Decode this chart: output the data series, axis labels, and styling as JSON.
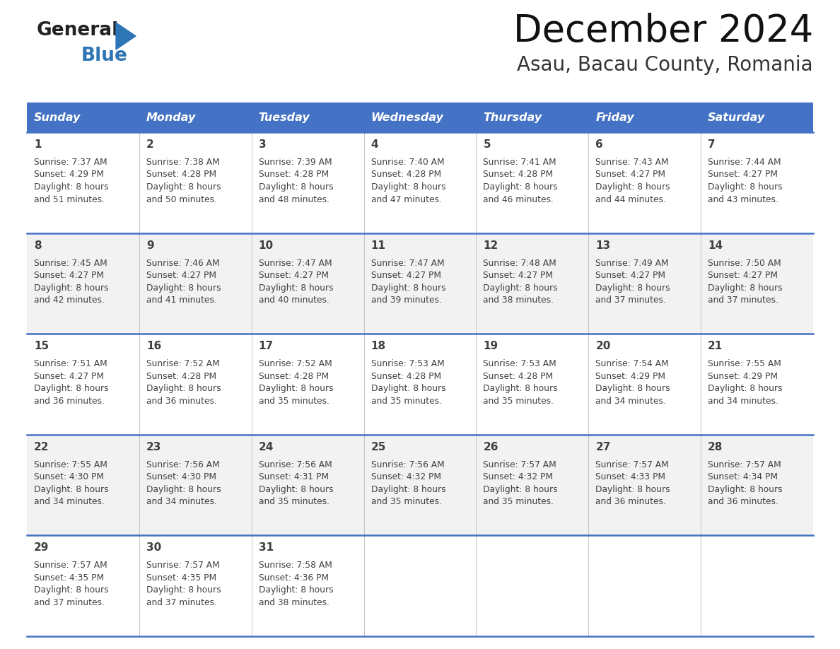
{
  "title": "December 2024",
  "subtitle": "Asau, Bacau County, Romania",
  "header_bg_color": "#4472C4",
  "header_text_color": "#FFFFFF",
  "day_names": [
    "Sunday",
    "Monday",
    "Tuesday",
    "Wednesday",
    "Thursday",
    "Friday",
    "Saturday"
  ],
  "cell_bg_row0": "#FFFFFF",
  "cell_bg_row1": "#F2F2F2",
  "row_line_color": "#4472C4",
  "text_color": "#404040",
  "days": [
    {
      "day": 1,
      "col": 0,
      "row": 0,
      "sunrise": "7:37 AM",
      "sunset": "4:29 PM",
      "daylight": "8 hours and 51 minutes."
    },
    {
      "day": 2,
      "col": 1,
      "row": 0,
      "sunrise": "7:38 AM",
      "sunset": "4:28 PM",
      "daylight": "8 hours and 50 minutes."
    },
    {
      "day": 3,
      "col": 2,
      "row": 0,
      "sunrise": "7:39 AM",
      "sunset": "4:28 PM",
      "daylight": "8 hours and 48 minutes."
    },
    {
      "day": 4,
      "col": 3,
      "row": 0,
      "sunrise": "7:40 AM",
      "sunset": "4:28 PM",
      "daylight": "8 hours and 47 minutes."
    },
    {
      "day": 5,
      "col": 4,
      "row": 0,
      "sunrise": "7:41 AM",
      "sunset": "4:28 PM",
      "daylight": "8 hours and 46 minutes."
    },
    {
      "day": 6,
      "col": 5,
      "row": 0,
      "sunrise": "7:43 AM",
      "sunset": "4:27 PM",
      "daylight": "8 hours and 44 minutes."
    },
    {
      "day": 7,
      "col": 6,
      "row": 0,
      "sunrise": "7:44 AM",
      "sunset": "4:27 PM",
      "daylight": "8 hours and 43 minutes."
    },
    {
      "day": 8,
      "col": 0,
      "row": 1,
      "sunrise": "7:45 AM",
      "sunset": "4:27 PM",
      "daylight": "8 hours and 42 minutes."
    },
    {
      "day": 9,
      "col": 1,
      "row": 1,
      "sunrise": "7:46 AM",
      "sunset": "4:27 PM",
      "daylight": "8 hours and 41 minutes."
    },
    {
      "day": 10,
      "col": 2,
      "row": 1,
      "sunrise": "7:47 AM",
      "sunset": "4:27 PM",
      "daylight": "8 hours and 40 minutes."
    },
    {
      "day": 11,
      "col": 3,
      "row": 1,
      "sunrise": "7:47 AM",
      "sunset": "4:27 PM",
      "daylight": "8 hours and 39 minutes."
    },
    {
      "day": 12,
      "col": 4,
      "row": 1,
      "sunrise": "7:48 AM",
      "sunset": "4:27 PM",
      "daylight": "8 hours and 38 minutes."
    },
    {
      "day": 13,
      "col": 5,
      "row": 1,
      "sunrise": "7:49 AM",
      "sunset": "4:27 PM",
      "daylight": "8 hours and 37 minutes."
    },
    {
      "day": 14,
      "col": 6,
      "row": 1,
      "sunrise": "7:50 AM",
      "sunset": "4:27 PM",
      "daylight": "8 hours and 37 minutes."
    },
    {
      "day": 15,
      "col": 0,
      "row": 2,
      "sunrise": "7:51 AM",
      "sunset": "4:27 PM",
      "daylight": "8 hours and 36 minutes."
    },
    {
      "day": 16,
      "col": 1,
      "row": 2,
      "sunrise": "7:52 AM",
      "sunset": "4:28 PM",
      "daylight": "8 hours and 36 minutes."
    },
    {
      "day": 17,
      "col": 2,
      "row": 2,
      "sunrise": "7:52 AM",
      "sunset": "4:28 PM",
      "daylight": "8 hours and 35 minutes."
    },
    {
      "day": 18,
      "col": 3,
      "row": 2,
      "sunrise": "7:53 AM",
      "sunset": "4:28 PM",
      "daylight": "8 hours and 35 minutes."
    },
    {
      "day": 19,
      "col": 4,
      "row": 2,
      "sunrise": "7:53 AM",
      "sunset": "4:28 PM",
      "daylight": "8 hours and 35 minutes."
    },
    {
      "day": 20,
      "col": 5,
      "row": 2,
      "sunrise": "7:54 AM",
      "sunset": "4:29 PM",
      "daylight": "8 hours and 34 minutes."
    },
    {
      "day": 21,
      "col": 6,
      "row": 2,
      "sunrise": "7:55 AM",
      "sunset": "4:29 PM",
      "daylight": "8 hours and 34 minutes."
    },
    {
      "day": 22,
      "col": 0,
      "row": 3,
      "sunrise": "7:55 AM",
      "sunset": "4:30 PM",
      "daylight": "8 hours and 34 minutes."
    },
    {
      "day": 23,
      "col": 1,
      "row": 3,
      "sunrise": "7:56 AM",
      "sunset": "4:30 PM",
      "daylight": "8 hours and 34 minutes."
    },
    {
      "day": 24,
      "col": 2,
      "row": 3,
      "sunrise": "7:56 AM",
      "sunset": "4:31 PM",
      "daylight": "8 hours and 35 minutes."
    },
    {
      "day": 25,
      "col": 3,
      "row": 3,
      "sunrise": "7:56 AM",
      "sunset": "4:32 PM",
      "daylight": "8 hours and 35 minutes."
    },
    {
      "day": 26,
      "col": 4,
      "row": 3,
      "sunrise": "7:57 AM",
      "sunset": "4:32 PM",
      "daylight": "8 hours and 35 minutes."
    },
    {
      "day": 27,
      "col": 5,
      "row": 3,
      "sunrise": "7:57 AM",
      "sunset": "4:33 PM",
      "daylight": "8 hours and 36 minutes."
    },
    {
      "day": 28,
      "col": 6,
      "row": 3,
      "sunrise": "7:57 AM",
      "sunset": "4:34 PM",
      "daylight": "8 hours and 36 minutes."
    },
    {
      "day": 29,
      "col": 0,
      "row": 4,
      "sunrise": "7:57 AM",
      "sunset": "4:35 PM",
      "daylight": "8 hours and 37 minutes."
    },
    {
      "day": 30,
      "col": 1,
      "row": 4,
      "sunrise": "7:57 AM",
      "sunset": "4:35 PM",
      "daylight": "8 hours and 37 minutes."
    },
    {
      "day": 31,
      "col": 2,
      "row": 4,
      "sunrise": "7:58 AM",
      "sunset": "4:36 PM",
      "daylight": "8 hours and 38 minutes."
    }
  ],
  "logo_text1": "General",
  "logo_text2": "Blue",
  "logo_color1": "#222222",
  "logo_color2": "#2E75B6",
  "logo_triangle_color": "#2E75B6",
  "fig_width": 11.88,
  "fig_height": 9.18,
  "dpi": 100
}
